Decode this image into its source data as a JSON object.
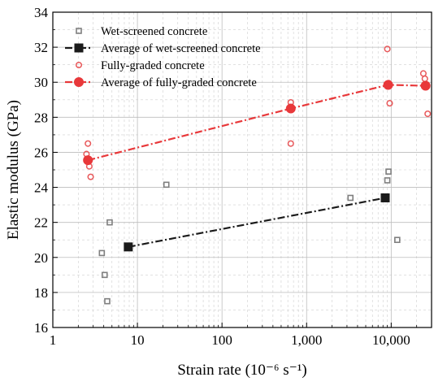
{
  "chart_data": {
    "type": "scatter",
    "xlabel": "Strain rate (10⁻⁶ s⁻¹)",
    "ylabel": "Elastic modulus (GPa)",
    "xscale": "log",
    "xlim": [
      1,
      30000
    ],
    "ylim": [
      16,
      34
    ],
    "x_ticks": [
      1,
      10,
      100,
      1000,
      10000
    ],
    "x_tick_labels": [
      "1",
      "10",
      "100",
      "1,000",
      "10,000"
    ],
    "y_ticks": [
      16,
      18,
      20,
      22,
      24,
      26,
      28,
      30,
      32,
      34
    ],
    "y_tick_labels": [
      "16",
      "18",
      "20",
      "22",
      "24",
      "26",
      "28",
      "30",
      "32",
      "34"
    ],
    "grid": true,
    "legend_position": "top-left",
    "series": [
      {
        "name": "Wet-screened concrete",
        "kind": "scatter",
        "marker": "open-square",
        "color": "#7f7f7f",
        "points": [
          [
            3.8,
            20.25
          ],
          [
            4.1,
            19.0
          ],
          [
            4.4,
            17.5
          ],
          [
            4.7,
            22.0
          ],
          [
            22,
            24.15
          ],
          [
            3300,
            23.4
          ],
          [
            9300,
            24.9
          ],
          [
            9000,
            24.4
          ],
          [
            11800,
            21.0
          ]
        ]
      },
      {
        "name": "Average of wet-screened concrete",
        "kind": "line",
        "marker": "filled-square",
        "color": "#1a1a1a",
        "line_style": "dash-dot",
        "points": [
          [
            7.8,
            20.6
          ],
          [
            8500,
            23.4
          ]
        ]
      },
      {
        "name": "Fully-graded concrete",
        "kind": "scatter",
        "marker": "open-circle",
        "color": "#e8585a",
        "points": [
          [
            2.5,
            25.9
          ],
          [
            2.6,
            26.5
          ],
          [
            2.7,
            25.2
          ],
          [
            2.8,
            24.6
          ],
          [
            650,
            28.85
          ],
          [
            650,
            26.5
          ],
          [
            9000,
            31.9
          ],
          [
            9300,
            29.95
          ],
          [
            9600,
            28.8
          ],
          [
            24000,
            30.5
          ],
          [
            25000,
            30.2
          ],
          [
            27000,
            28.2
          ]
        ]
      },
      {
        "name": "Average of fully-graded concrete",
        "kind": "line",
        "marker": "filled-circle",
        "color": "#e8383a",
        "line_style": "dash-dot",
        "points": [
          [
            2.6,
            25.55
          ],
          [
            650,
            28.5
          ],
          [
            9200,
            29.85
          ],
          [
            25500,
            29.8
          ]
        ]
      }
    ]
  }
}
